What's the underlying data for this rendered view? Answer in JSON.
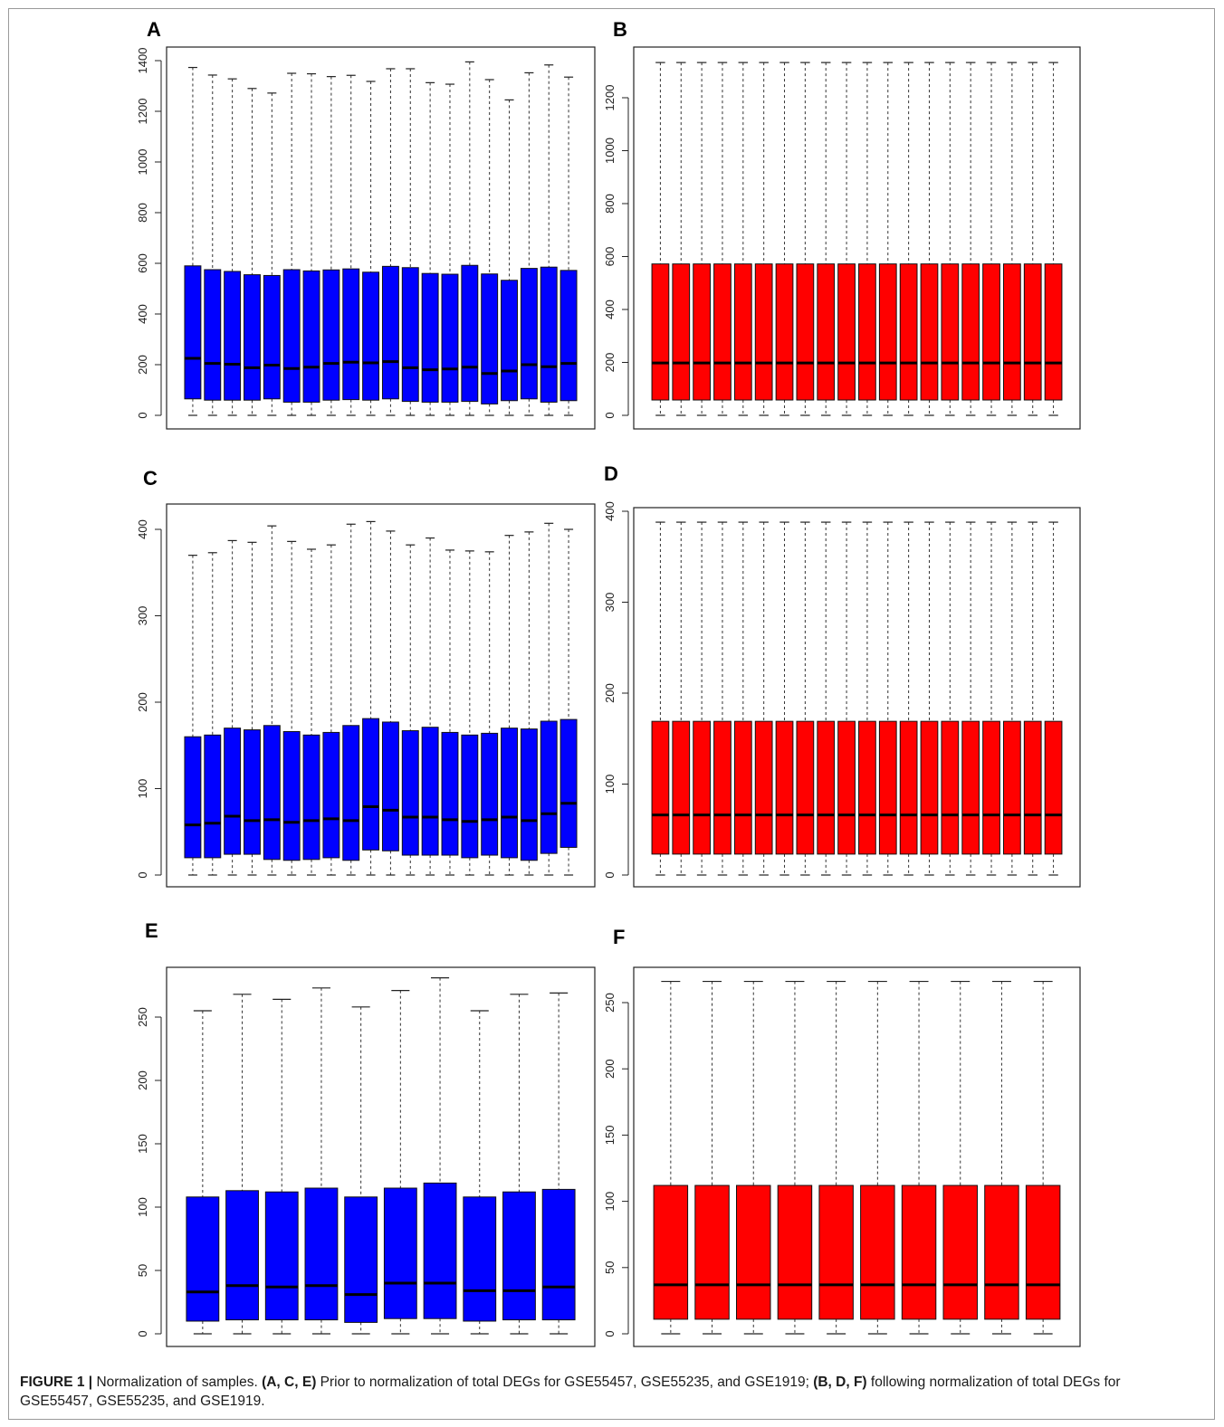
{
  "figure": {
    "caption": {
      "figure_label": "FIGURE 1 |",
      "intro": " Normalization of samples. ",
      "group1": "(A, C, E)",
      "text1": " Prior to normalization of total DEGs for GSE55457, GSE55235, and GSE1919; ",
      "group2": "(B, D, F)",
      "text2": " following normalization of total DEGs for GSE55457, GSE55235, and GSE1919."
    }
  },
  "chart_data": [
    {
      "panel": "A",
      "type": "box",
      "color": "#0000ff",
      "yticks": [
        0,
        200,
        400,
        600,
        800,
        1000,
        1200,
        1400
      ],
      "ylim": [
        0,
        1400
      ],
      "series": {
        "max": [
          1373,
          1343,
          1328,
          1290,
          1272,
          1350,
          1348,
          1337,
          1342,
          1318,
          1368,
          1368,
          1313,
          1307,
          1395,
          1325,
          1245,
          1352,
          1383,
          1335
        ],
        "q3": [
          590,
          575,
          568,
          555,
          552,
          575,
          570,
          574,
          578,
          565,
          588,
          583,
          560,
          557,
          592,
          558,
          533,
          580,
          585,
          572
        ],
        "median": [
          225,
          205,
          202,
          188,
          198,
          185,
          190,
          205,
          210,
          207,
          212,
          188,
          180,
          183,
          190,
          165,
          175,
          200,
          192,
          205
        ],
        "q1": [
          65,
          60,
          60,
          60,
          65,
          52,
          52,
          60,
          62,
          60,
          65,
          55,
          52,
          52,
          55,
          45,
          58,
          65,
          52,
          58
        ],
        "min": [
          0,
          0,
          0,
          0,
          0,
          0,
          0,
          0,
          0,
          0,
          0,
          0,
          0,
          0,
          0,
          0,
          0,
          0,
          0,
          0
        ]
      }
    },
    {
      "panel": "B",
      "type": "box",
      "color": "#ff0000",
      "yticks": [
        0,
        200,
        400,
        600,
        800,
        1000,
        1200
      ],
      "ylim": [
        0,
        1400
      ],
      "series": {
        "max": [
          1333,
          1333,
          1333,
          1333,
          1333,
          1333,
          1333,
          1333,
          1333,
          1333,
          1333,
          1333,
          1333,
          1333,
          1333,
          1333,
          1333,
          1333,
          1333,
          1333
        ],
        "q3": [
          572,
          572,
          572,
          572,
          572,
          572,
          572,
          572,
          572,
          572,
          572,
          572,
          572,
          572,
          572,
          572,
          572,
          572,
          572,
          572
        ],
        "median": [
          198,
          198,
          198,
          198,
          198,
          198,
          198,
          198,
          198,
          198,
          198,
          198,
          198,
          198,
          198,
          198,
          198,
          198,
          198,
          198
        ],
        "q1": [
          58,
          58,
          58,
          58,
          58,
          58,
          58,
          58,
          58,
          58,
          58,
          58,
          58,
          58,
          58,
          58,
          58,
          58,
          58,
          58
        ],
        "min": [
          0,
          0,
          0,
          0,
          0,
          0,
          0,
          0,
          0,
          0,
          0,
          0,
          0,
          0,
          0,
          0,
          0,
          0,
          0,
          0
        ]
      }
    },
    {
      "panel": "C",
      "type": "box",
      "color": "#0000ff",
      "yticks": [
        0,
        100,
        200,
        300,
        400
      ],
      "ylim": [
        0,
        410
      ],
      "series": {
        "max": [
          370,
          373,
          387,
          385,
          404,
          386,
          377,
          382,
          406,
          409,
          398,
          382,
          390,
          376,
          375,
          374,
          393,
          397,
          407,
          400
        ],
        "q3": [
          160,
          162,
          170,
          168,
          173,
          166,
          162,
          165,
          173,
          181,
          177,
          167,
          171,
          165,
          162,
          164,
          170,
          169,
          178,
          180
        ],
        "median": [
          58,
          60,
          68,
          63,
          64,
          61,
          63,
          65,
          63,
          79,
          75,
          67,
          67,
          64,
          62,
          64,
          67,
          63,
          71,
          83
        ],
        "q1": [
          20,
          20,
          24,
          24,
          18,
          17,
          18,
          20,
          17,
          29,
          28,
          23,
          23,
          23,
          20,
          23,
          20,
          17,
          25,
          32
        ],
        "min": [
          0,
          0,
          0,
          0,
          0,
          0,
          0,
          0,
          0,
          0,
          0,
          0,
          0,
          0,
          0,
          0,
          0,
          0,
          0,
          0
        ]
      }
    },
    {
      "panel": "D",
      "type": "box",
      "color": "#ff0000",
      "yticks": [
        0,
        100,
        200,
        300,
        400
      ],
      "ylim": [
        0,
        400
      ],
      "series": {
        "max": [
          388,
          388,
          388,
          388,
          388,
          388,
          388,
          388,
          388,
          388,
          388,
          388,
          388,
          388,
          388,
          388,
          388,
          388,
          388,
          388
        ],
        "q3": [
          169,
          169,
          169,
          169,
          169,
          169,
          169,
          169,
          169,
          169,
          169,
          169,
          169,
          169,
          169,
          169,
          169,
          169,
          169,
          169
        ],
        "median": [
          66,
          66,
          66,
          66,
          66,
          66,
          66,
          66,
          66,
          66,
          66,
          66,
          66,
          66,
          66,
          66,
          66,
          66,
          66,
          66
        ],
        "q1": [
          23,
          23,
          23,
          23,
          23,
          23,
          23,
          23,
          23,
          23,
          23,
          23,
          23,
          23,
          23,
          23,
          23,
          23,
          23,
          23
        ],
        "min": [
          0,
          0,
          0,
          0,
          0,
          0,
          0,
          0,
          0,
          0,
          0,
          0,
          0,
          0,
          0,
          0,
          0,
          0,
          0,
          0
        ]
      }
    },
    {
      "panel": "E",
      "type": "box",
      "color": "#0000ff",
      "yticks": [
        0,
        50,
        100,
        150,
        200,
        250
      ],
      "ylim": [
        0,
        280
      ],
      "series": {
        "max": [
          255,
          268,
          264,
          273,
          258,
          271,
          281,
          255,
          268,
          269
        ],
        "q3": [
          108,
          113,
          112,
          115,
          108,
          115,
          119,
          108,
          112,
          114
        ],
        "median": [
          33,
          38,
          37,
          38,
          31,
          40,
          40,
          34,
          34,
          37
        ],
        "q1": [
          10,
          11,
          11,
          11,
          9,
          12,
          12,
          10,
          11,
          11
        ],
        "min": [
          0,
          0,
          0,
          0,
          0,
          0,
          0,
          0,
          0,
          0
        ]
      }
    },
    {
      "panel": "F",
      "type": "box",
      "color": "#ff0000",
      "yticks": [
        0,
        50,
        100,
        150,
        200,
        250
      ],
      "ylim": [
        0,
        270
      ],
      "series": {
        "max": [
          266,
          266,
          266,
          266,
          266,
          266,
          266,
          266,
          266,
          266
        ],
        "q3": [
          112,
          112,
          112,
          112,
          112,
          112,
          112,
          112,
          112,
          112
        ],
        "median": [
          37,
          37,
          37,
          37,
          37,
          37,
          37,
          37,
          37,
          37
        ],
        "q1": [
          11,
          11,
          11,
          11,
          11,
          11,
          11,
          11,
          11,
          11
        ],
        "min": [
          0,
          0,
          0,
          0,
          0,
          0,
          0,
          0,
          0,
          0
        ]
      }
    }
  ]
}
